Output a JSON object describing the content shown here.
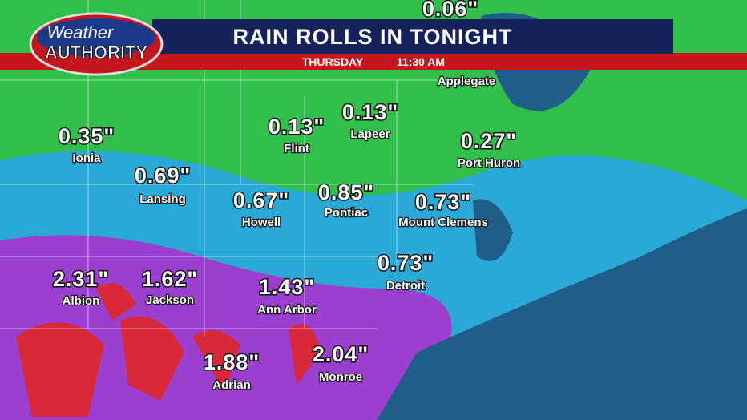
{
  "header": {
    "logo_top": "Weather",
    "logo_bottom": "AUTHORITY",
    "title": "RAIN ROLLS IN TONIGHT",
    "day": "THURSDAY",
    "time": "11:30 AM"
  },
  "locations": [
    {
      "amount": "0.06\"",
      "name": "Applegate"
    },
    {
      "amount": "0.35\"",
      "name": "Ionia"
    },
    {
      "amount": "0.69\"",
      "name": "Lansing"
    },
    {
      "amount": "0.13\"",
      "name": "Flint"
    },
    {
      "amount": "0.13\"",
      "name": "Lapeer"
    },
    {
      "amount": "0.27\"",
      "name": "Port Huron"
    },
    {
      "amount": "0.67\"",
      "name": "Howell"
    },
    {
      "amount": "0.85\"",
      "name": "Pontiac"
    },
    {
      "amount": "0.73\"",
      "name": "Mount Clemens"
    },
    {
      "amount": "0.73\"",
      "name": "Detroit"
    },
    {
      "amount": "2.31\"",
      "name": "Albion"
    },
    {
      "amount": "1.62\"",
      "name": "Jackson"
    },
    {
      "amount": "1.43\"",
      "name": "Ann Arbor"
    },
    {
      "amount": "1.88\"",
      "name": "Adrian"
    },
    {
      "amount": "2.04\"",
      "name": "Monroe"
    }
  ]
}
